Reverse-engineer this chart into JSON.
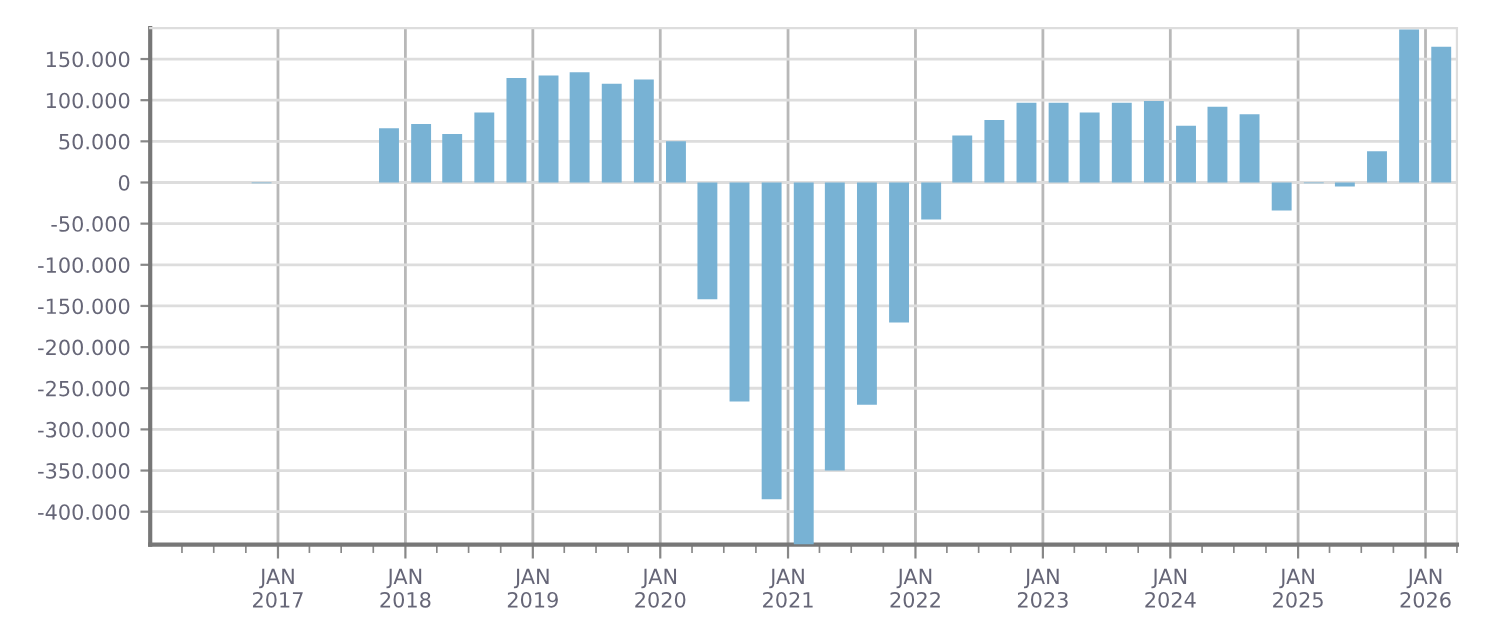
{
  "chart_data": {
    "type": "bar",
    "color": "#78b2d4",
    "x": [
      "2016-11-15",
      "2017-02-15",
      "2017-05-15",
      "2017-08-15",
      "2017-11-15",
      "2018-02-15",
      "2018-05-15",
      "2018-08-15",
      "2018-11-15",
      "2019-02-15",
      "2019-05-15",
      "2019-08-15",
      "2019-11-15",
      "2020-02-15",
      "2020-05-15",
      "2020-08-15",
      "2020-11-15",
      "2021-02-15",
      "2021-05-15",
      "2021-08-15",
      "2021-11-15",
      "2022-02-15",
      "2022-05-15",
      "2022-08-15",
      "2022-11-15",
      "2023-02-15",
      "2023-05-15",
      "2023-08-15",
      "2023-11-15",
      "2024-02-15",
      "2024-05-15",
      "2024-08-15",
      "2024-11-15",
      "2025-02-15",
      "2025-05-15",
      "2025-08-15",
      "2025-11-15",
      "2026-02-15"
    ],
    "values": [
      -1000,
      null,
      null,
      null,
      66000,
      71000,
      59000,
      85000,
      127000,
      130000,
      134000,
      120000,
      125000,
      50000,
      -142000,
      -266000,
      -385000,
      -440000,
      -350000,
      -270000,
      -170000,
      -45000,
      57000,
      76000,
      97000,
      97000,
      85000,
      97000,
      99000,
      69000,
      92000,
      83000,
      -34000,
      -1000,
      -5000,
      38000,
      186000,
      165000
    ],
    "xlim": [
      "2016-01-01",
      "2026-04-01"
    ],
    "ylim": [
      -440000,
      187500
    ],
    "xticks": [
      {
        "value": "2017-01-01",
        "label": "JAN\n2017"
      },
      {
        "value": "2018-01-01",
        "label": "JAN\n2018"
      },
      {
        "value": "2019-01-01",
        "label": "JAN\n2019"
      },
      {
        "value": "2020-01-01",
        "label": "JAN\n2020"
      },
      {
        "value": "2021-01-01",
        "label": "JAN\n2021"
      },
      {
        "value": "2022-01-01",
        "label": "JAN\n2022"
      },
      {
        "value": "2023-01-01",
        "label": "JAN\n2023"
      },
      {
        "value": "2024-01-01",
        "label": "JAN\n2024"
      },
      {
        "value": "2025-01-01",
        "label": "JAN\n2025"
      },
      {
        "value": "2026-01-01",
        "label": "JAN\n2026"
      }
    ],
    "yticks": [
      {
        "value": 150000,
        "label": "150.000"
      },
      {
        "value": 100000,
        "label": "100.000"
      },
      {
        "value": 50000,
        "label": "50.000"
      },
      0,
      {
        "value": -50000,
        "label": "-50.000"
      },
      {
        "value": -100000,
        "label": "-100.000"
      },
      {
        "value": -150000,
        "label": "-150.000"
      },
      {
        "value": -200000,
        "label": "-200.000"
      },
      {
        "value": -250000,
        "label": "-250.000"
      },
      {
        "value": -300000,
        "label": "-300.000"
      },
      {
        "value": -350000,
        "label": "-350.000"
      },
      {
        "value": -400000,
        "label": "-400.000"
      }
    ],
    "grid": true
  }
}
